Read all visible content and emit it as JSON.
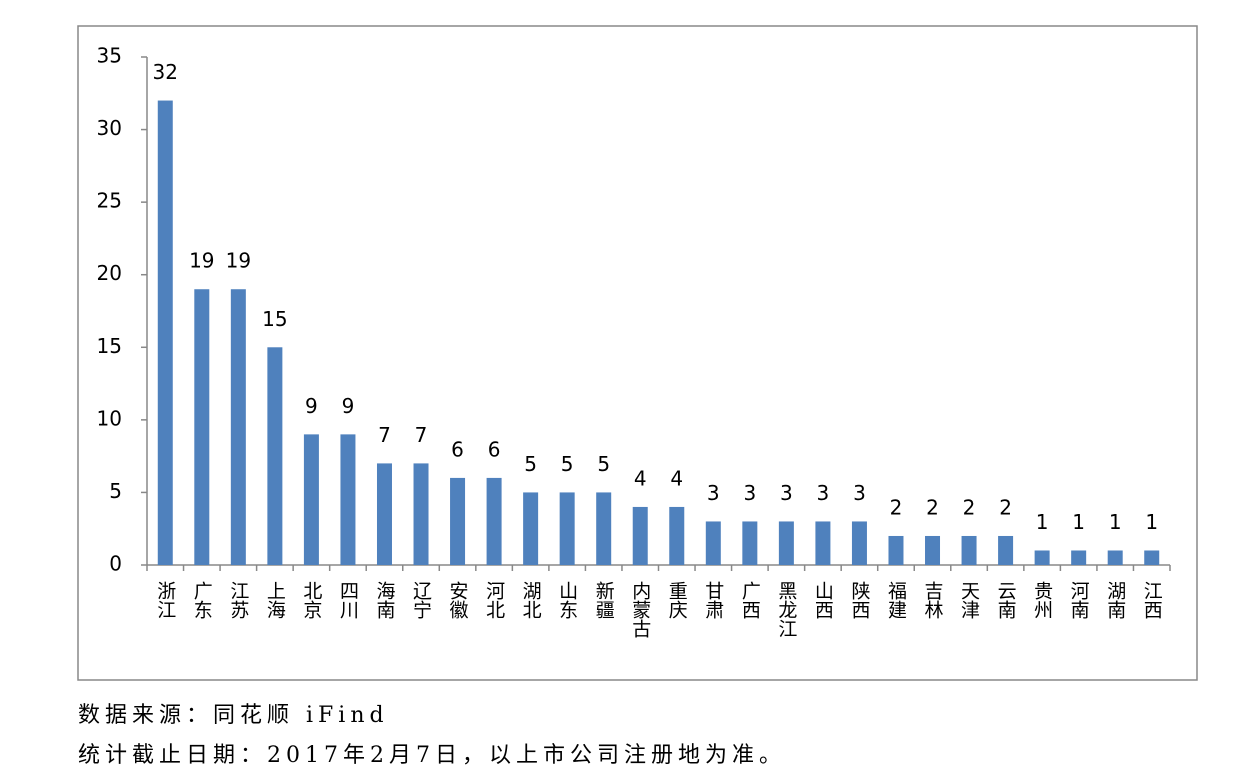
{
  "chart_data": {
    "type": "bar",
    "categories": [
      "浙江",
      "广东",
      "江苏",
      "上海",
      "北京",
      "四川",
      "海南",
      "辽宁",
      "安徽",
      "河北",
      "湖北",
      "山东",
      "新疆",
      "内蒙古",
      "重庆",
      "甘肃",
      "广西",
      "黑龙江",
      "山西",
      "陕西",
      "福建",
      "吉林",
      "天津",
      "云南",
      "贵州",
      "河南",
      "湖南",
      "江西"
    ],
    "values": [
      32,
      19,
      19,
      15,
      9,
      9,
      7,
      7,
      6,
      6,
      5,
      5,
      5,
      4,
      4,
      3,
      3,
      3,
      3,
      3,
      2,
      2,
      2,
      2,
      1,
      1,
      1,
      1
    ],
    "color": "#4f81bd",
    "ylim": [
      0,
      35
    ],
    "yticks": [
      0,
      5,
      10,
      15,
      20,
      25,
      30,
      35
    ],
    "grid": false
  },
  "notes": [
    "数据来源：同花顺 iFind",
    "统计截止日期：2017年2月7日，以上市公司注册地为准。"
  ]
}
